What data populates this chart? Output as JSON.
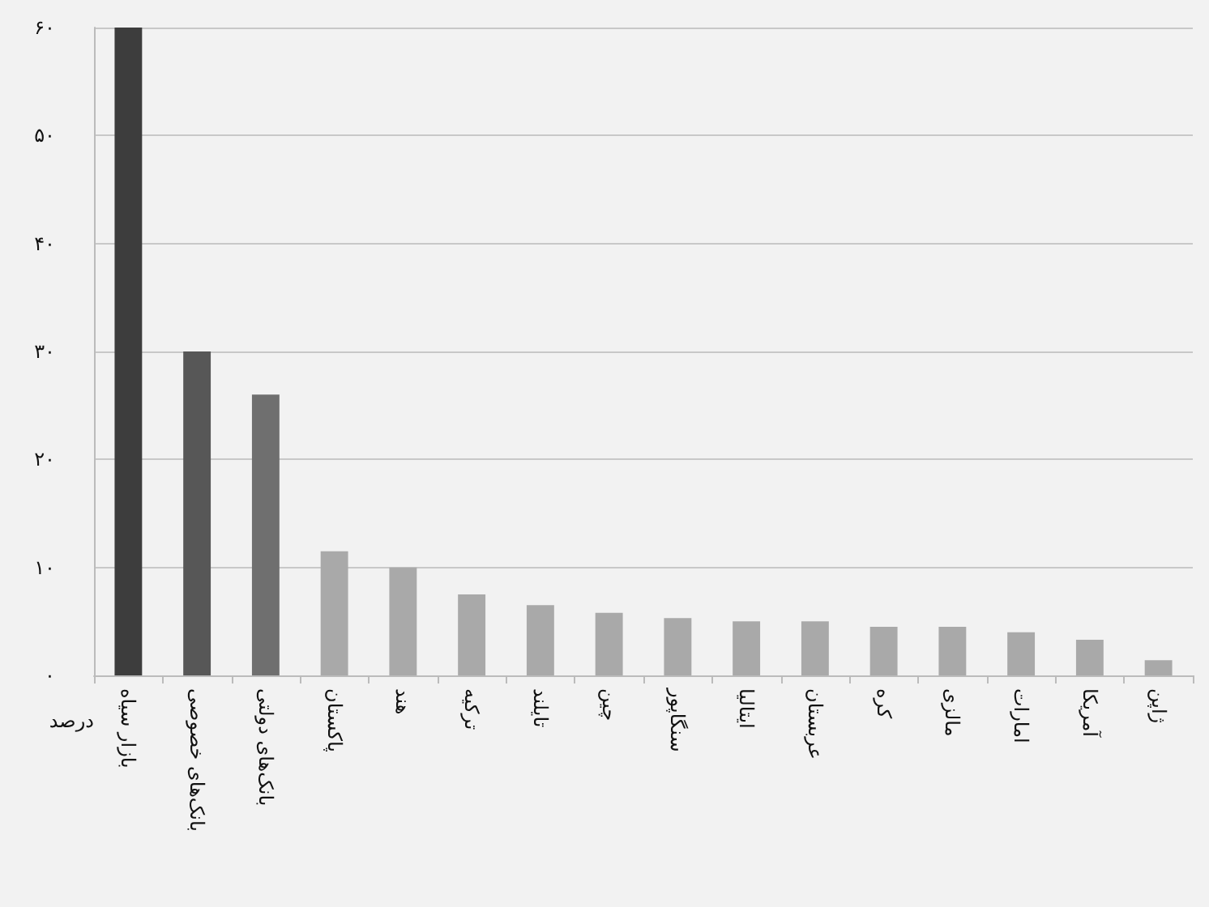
{
  "chart_data": {
    "type": "bar",
    "ylabel": "درصد",
    "categories": [
      "بازار سیاه",
      "بانک‌های خصوصی",
      "بانک‌های دولتی",
      "پاکستان",
      "هند",
      "ترکیه",
      "تایلند",
      "چین",
      "سنگاپور",
      "ایتالیا",
      "عربستان",
      "کره",
      "مالزی",
      "امارات",
      "آمریکا",
      "ژاپن"
    ],
    "values": [
      60,
      30,
      26,
      11.5,
      10,
      7.5,
      6.5,
      5.8,
      5.3,
      5,
      5,
      4.5,
      4.5,
      4,
      3.3,
      1.4
    ],
    "colors": [
      "#3d3d3d",
      "#575757",
      "#6f6f6f",
      "#a9a9a9",
      "#a9a9a9",
      "#a9a9a9",
      "#a9a9a9",
      "#a9a9a9",
      "#a9a9a9",
      "#a9a9a9",
      "#a9a9a9",
      "#a9a9a9",
      "#a9a9a9",
      "#a9a9a9",
      "#a9a9a9",
      "#a9a9a9"
    ],
    "ylim": [
      0,
      60
    ],
    "yticks": [
      {
        "value": 0,
        "label": "۰"
      },
      {
        "value": 10,
        "label": "۱۰"
      },
      {
        "value": 20,
        "label": "۲۰"
      },
      {
        "value": 30,
        "label": "۳۰"
      },
      {
        "value": 40,
        "label": "۴۰"
      },
      {
        "value": 50,
        "label": "۵۰"
      },
      {
        "value": 60,
        "label": "۶۰"
      }
    ],
    "grid": "y"
  }
}
